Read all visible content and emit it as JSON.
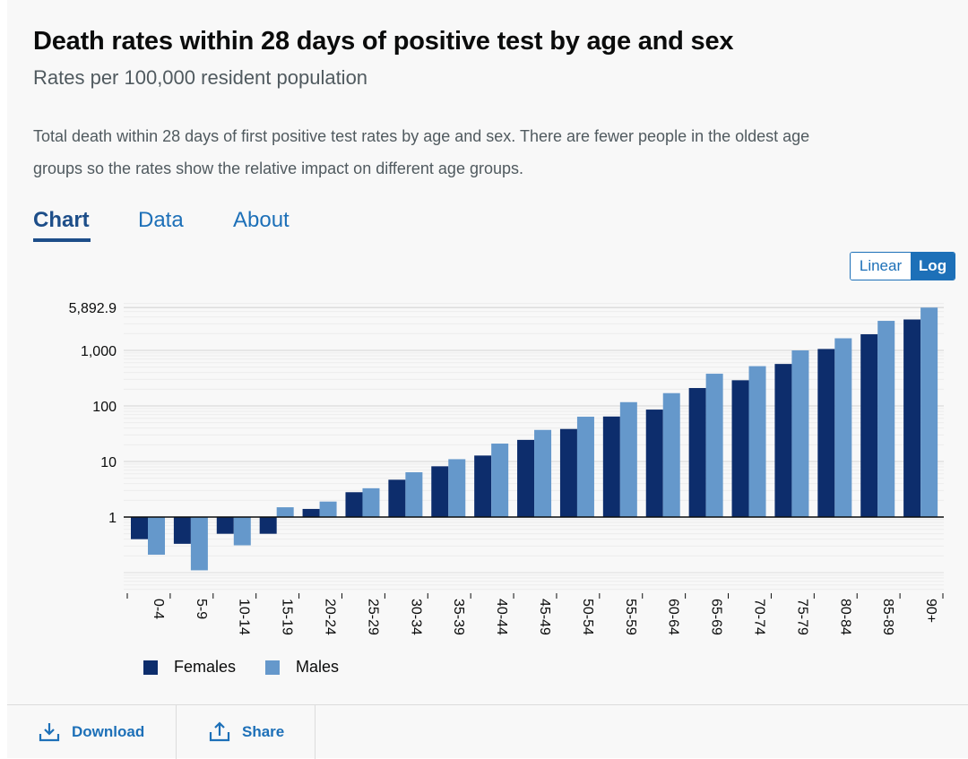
{
  "header": {
    "title": "Death rates within 28 days of positive test by age and sex",
    "subtitle": "Rates per 100,000 resident population",
    "description": "Total death within 28 days of first positive test rates by age and sex. There are fewer people in the oldest age groups so the rates show the relative impact on different age groups."
  },
  "tabs": [
    {
      "label": "Chart",
      "active": true
    },
    {
      "label": "Data",
      "active": false
    },
    {
      "label": "About",
      "active": false
    }
  ],
  "scale_toggle": {
    "linear_label": "Linear",
    "log_label": "Log",
    "selected": "Log"
  },
  "footer": {
    "download_label": "Download",
    "share_label": "Share"
  },
  "icons": {
    "download": "download-icon",
    "share": "share-icon"
  },
  "colors": {
    "females": "#0d2d6c",
    "males": "#6598cb",
    "accent": "#1d70b8",
    "active_tab": "#1d4e89"
  },
  "chart_data": {
    "type": "bar",
    "scale": "log",
    "categories": [
      "0-4",
      "5-9",
      "10-14",
      "15-19",
      "20-24",
      "25-29",
      "30-34",
      "35-39",
      "40-44",
      "45-49",
      "50-54",
      "55-59",
      "60-64",
      "65-69",
      "70-74",
      "75-79",
      "80-84",
      "85-89",
      "90+"
    ],
    "series": [
      {
        "name": "Females",
        "values": [
          0.4,
          0.33,
          0.5,
          0.5,
          1.4,
          2.8,
          4.7,
          8.2,
          12.8,
          24.5,
          38.5,
          64.5,
          86,
          210,
          290,
          570,
          1060,
          1950,
          3600
        ]
      },
      {
        "name": "Males",
        "values": [
          0.21,
          0.11,
          0.31,
          1.5,
          1.9,
          3.3,
          6.4,
          11,
          21,
          37,
          64,
          117,
          170,
          380,
          520,
          1000,
          1650,
          3400,
          5892.9
        ]
      }
    ],
    "y_ticks": [
      {
        "value": 1,
        "label": "1"
      },
      {
        "value": 10,
        "label": "10"
      },
      {
        "value": 100,
        "label": "100"
      },
      {
        "value": 1000,
        "label": "1,000"
      },
      {
        "value": 5892.9,
        "label": "5,892.9"
      }
    ],
    "grid": true,
    "legend_position": "bottom-left"
  }
}
